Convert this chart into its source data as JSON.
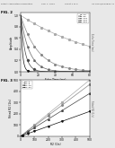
{
  "bg_color": "#e8e8e8",
  "header_text": "Patent Application Publication",
  "header_date": "Sep. 2, 2010",
  "header_sheet": "Sheet 2 of 9",
  "header_num": "US 2010/0219830 A1",
  "fig_top_label": "FIG. 2",
  "fig_bottom_label": "FIG. 3",
  "plot1": {
    "xlabel": "Echo Time (ms)",
    "ylabel": "Amplitude",
    "xlim": [
      0,
      80
    ],
    "ylim": [
      0,
      1.05
    ],
    "xticks": [
      0,
      20,
      40,
      60,
      80
    ],
    "yticks": [
      0.0,
      0.2,
      0.4,
      0.6,
      0.8,
      1.0
    ],
    "r2_vals": [
      10,
      50,
      100,
      200,
      500
    ],
    "colors": [
      "#aaaaaa",
      "#888888",
      "#666666",
      "#444444",
      "#111111"
    ],
    "marker_styles": [
      "s",
      "o",
      "^",
      "D",
      "v"
    ],
    "legend_prefix": "R2="
  },
  "plot2": {
    "xlabel": "R2 (1/s)",
    "ylabel": "Fitted R2 (1/s)",
    "xlim": [
      0,
      500
    ],
    "ylim": [
      0,
      500
    ],
    "xticks": [
      0,
      100,
      200,
      300,
      400,
      500
    ],
    "yticks": [
      0,
      100,
      200,
      300,
      400,
      500
    ],
    "etl_vals": [
      4,
      8,
      16,
      32
    ],
    "colors": [
      "#aaaaaa",
      "#888888",
      "#444444",
      "#111111"
    ],
    "marker_styles": [
      "s",
      "o",
      "^",
      "v"
    ],
    "legend_prefix": "ETL="
  }
}
